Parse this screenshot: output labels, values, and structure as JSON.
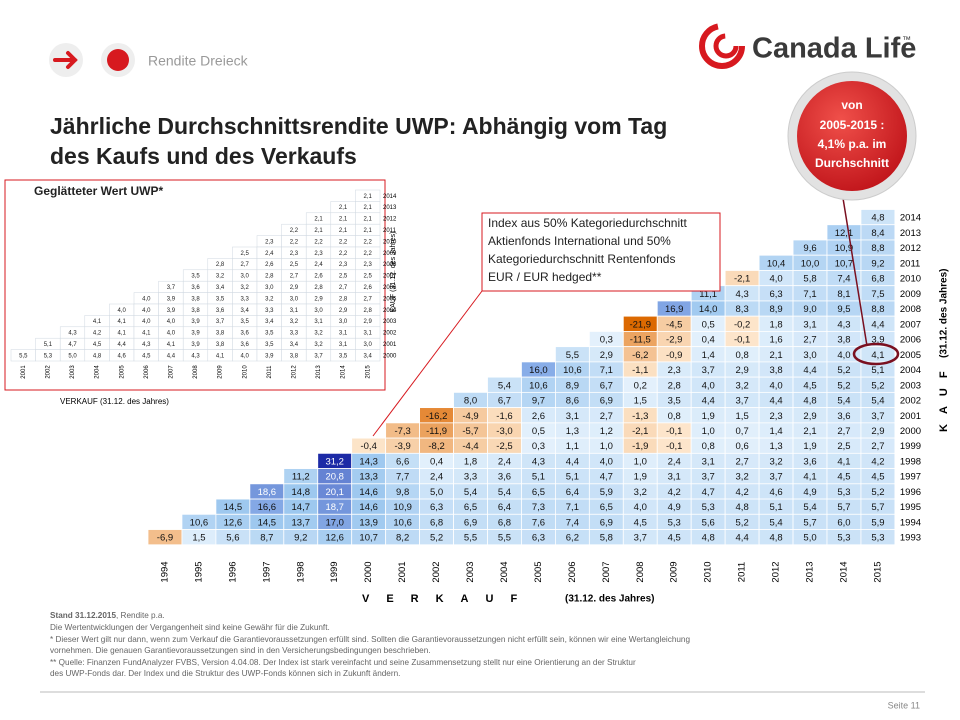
{
  "header": {
    "section": "Rendite Dreieck",
    "logo": "Canada Life",
    "logo_tm": "™"
  },
  "title_lines": [
    "Jährliche Durchschnittsrendite UWP: Abhängig vom Tag",
    "des Kaufs und des Verkaufs"
  ],
  "badge": {
    "lines": [
      "von",
      "2005-2015 :",
      "4,1% p.a. im",
      "Durchschnitt"
    ]
  },
  "index_note": {
    "lines": [
      "Index aus 50% Kategoriedurchschnitt",
      "Aktienfonds International und  50%",
      "Kategoriedurchschnitt Rentenfonds",
      "EUR / EUR hedged**"
    ]
  },
  "main_table": {
    "sale_years": [
      1994,
      1995,
      1996,
      1997,
      1998,
      1999,
      2000,
      2001,
      2002,
      2003,
      2004,
      2005,
      2006,
      2007,
      2008,
      2009,
      2010,
      2011,
      2012,
      2013,
      2014,
      2015
    ],
    "buy_years": [
      2014,
      2013,
      2012,
      2011,
      2010,
      2009,
      2008,
      2007,
      2006,
      2005,
      2004,
      2003,
      2002,
      2001,
      2000,
      1999,
      1998,
      1997,
      1996,
      1995,
      1994,
      1993
    ],
    "rows": [
      [
        "4,8"
      ],
      [
        "12,1",
        "8,4"
      ],
      [
        "9,6",
        "10,9",
        "8,8"
      ],
      [
        "10,4",
        "10,0",
        "10,7",
        "9,2"
      ],
      [
        "-2,1",
        "4,0",
        "5,8",
        "7,4",
        "6,8"
      ],
      [
        "11,1",
        "4,3",
        "6,3",
        "7,1",
        "8,1",
        "7,5"
      ],
      [
        "16,9",
        "14,0",
        "8,3",
        "8,9",
        "9,0",
        "9,5",
        "8,8"
      ],
      [
        "-21,9",
        "-4,5",
        "0,5",
        "-0,2",
        "1,8",
        "3,1",
        "4,3",
        "4,4"
      ],
      [
        "0,3",
        "-11,5",
        "-2,9",
        "0,4",
        "-0,1",
        "1,6",
        "2,7",
        "3,8",
        "3,9"
      ],
      [
        "5,5",
        "2,9",
        "-6,2",
        "-0,9",
        "1,4",
        "0,8",
        "2,1",
        "3,0",
        "4,0",
        "4,1"
      ],
      [
        "16,0",
        "10,6",
        "7,1",
        "-1,1",
        "2,3",
        "3,7",
        "2,9",
        "3,8",
        "4,4",
        "5,2",
        "5,1"
      ],
      [
        "5,4",
        "10,6",
        "8,9",
        "6,7",
        "0,2",
        "2,8",
        "4,0",
        "3,2",
        "4,0",
        "4,5",
        "5,2",
        "5,2"
      ],
      [
        "8,0",
        "6,7",
        "9,7",
        "8,6",
        "6,9",
        "1,5",
        "3,5",
        "4,4",
        "3,7",
        "4,4",
        "4,8",
        "5,4",
        "5,4"
      ],
      [
        "-16,2",
        "-4,9",
        "-1,6",
        "2,6",
        "3,1",
        "2,7",
        "-1,3",
        "0,8",
        "1,9",
        "1,5",
        "2,3",
        "2,9",
        "3,6",
        "3,7"
      ],
      [
        "-7,3",
        "-11,9",
        "-5,7",
        "-3,0",
        "0,5",
        "1,3",
        "1,2",
        "-2,1",
        "-0,1",
        "1,0",
        "0,7",
        "1,4",
        "2,1",
        "2,7",
        "2,9"
      ],
      [
        "-0,4",
        "-3,9",
        "-8,2",
        "-4,4",
        "-2,5",
        "0,3",
        "1,1",
        "1,0",
        "-1,9",
        "-0,1",
        "0,8",
        "0,6",
        "1,3",
        "1,9",
        "2,5",
        "2,7"
      ],
      [
        "31,2",
        "14,3",
        "6,6",
        "0,4",
        "1,8",
        "2,4",
        "4,3",
        "4,4",
        "4,0",
        "1,0",
        "2,4",
        "3,1",
        "2,7",
        "3,2",
        "3,6",
        "4,1",
        "4,2"
      ],
      [
        "11,2",
        "20,8",
        "13,3",
        "7,7",
        "2,4",
        "3,3",
        "3,6",
        "5,1",
        "5,1",
        "4,7",
        "1,9",
        "3,1",
        "3,7",
        "3,2",
        "3,7",
        "4,1",
        "4,5",
        "4,5"
      ],
      [
        "18,6",
        "14,8",
        "20,1",
        "14,6",
        "9,8",
        "5,0",
        "5,4",
        "5,4",
        "6,5",
        "6,4",
        "5,9",
        "3,2",
        "4,2",
        "4,7",
        "4,2",
        "4,6",
        "4,9",
        "5,3",
        "5,2"
      ],
      [
        "14,5",
        "16,6",
        "14,7",
        "18,7",
        "14,6",
        "10,9",
        "6,3",
        "6,5",
        "6,4",
        "7,3",
        "7,1",
        "6,5",
        "4,0",
        "4,9",
        "5,3",
        "4,8",
        "5,1",
        "5,4",
        "5,7",
        "5,7"
      ],
      [
        "10,6",
        "12,6",
        "14,5",
        "13,7",
        "17,0",
        "13,9",
        "10,6",
        "6,8",
        "6,9",
        "6,8",
        "7,6",
        "7,4",
        "6,9",
        "4,5",
        "5,3",
        "5,6",
        "5,2",
        "5,4",
        "5,7",
        "6,0",
        "5,9"
      ],
      [
        "-6,9",
        "1,5",
        "5,6",
        "8,7",
        "9,2",
        "12,6",
        "10,7",
        "8,2",
        "5,2",
        "5,5",
        "5,5",
        "6,3",
        "6,2",
        "5,8",
        "3,7",
        "4,5",
        "4,8",
        "4,4",
        "4,8",
        "5,0",
        "5,3",
        "5,3"
      ]
    ],
    "x_axis_word": "VERKAUF",
    "x_axis_note": "(31.12. des Jahres)",
    "y_axis_word": "KAUF",
    "y_axis_note": "(31.12. des Jahres)"
  },
  "inset": {
    "title": "Geglätteter Wert UWP*",
    "sale_years": [
      2001,
      2002,
      2003,
      2004,
      2005,
      2006,
      2007,
      2008,
      2009,
      2010,
      2011,
      2012,
      2013,
      2014,
      2015
    ],
    "buy_years": [
      2014,
      2013,
      2012,
      2011,
      2010,
      2009,
      2008,
      2007,
      2006,
      2005,
      2004,
      2003,
      2002,
      2001,
      2000
    ],
    "rows": [
      [
        "2,1"
      ],
      [
        "2,1",
        "2,1"
      ],
      [
        "2,1",
        "2,1",
        "2,1"
      ],
      [
        "2,2",
        "2,1",
        "2,1",
        "2,1"
      ],
      [
        "2,3",
        "2,2",
        "2,2",
        "2,2",
        "2,2"
      ],
      [
        "2,5",
        "2,4",
        "2,3",
        "2,3",
        "2,2",
        "2,2"
      ],
      [
        "2,8",
        "2,7",
        "2,6",
        "2,5",
        "2,4",
        "2,3",
        "2,3"
      ],
      [
        "3,5",
        "3,2",
        "3,0",
        "2,8",
        "2,7",
        "2,6",
        "2,5",
        "2,5"
      ],
      [
        "3,7",
        "3,6",
        "3,4",
        "3,2",
        "3,0",
        "2,9",
        "2,8",
        "2,7",
        "2,6"
      ],
      [
        "4,0",
        "3,9",
        "3,8",
        "3,5",
        "3,3",
        "3,2",
        "3,0",
        "2,9",
        "2,8",
        "2,7"
      ],
      [
        "4,0",
        "4,0",
        "3,9",
        "3,8",
        "3,6",
        "3,4",
        "3,3",
        "3,1",
        "3,0",
        "2,9",
        "2,8"
      ],
      [
        "4,1",
        "4,1",
        "4,0",
        "4,0",
        "3,9",
        "3,7",
        "3,5",
        "3,4",
        "3,2",
        "3,1",
        "3,0",
        "2,9"
      ],
      [
        "4,3",
        "4,2",
        "4,1",
        "4,1",
        "4,0",
        "3,9",
        "3,8",
        "3,6",
        "3,5",
        "3,3",
        "3,2",
        "3,1",
        "3,1"
      ],
      [
        "5,1",
        "4,7",
        "4,5",
        "4,4",
        "4,3",
        "4,1",
        "3,9",
        "3,8",
        "3,6",
        "3,5",
        "3,4",
        "3,2",
        "3,1",
        "3,0"
      ],
      [
        "5,5",
        "5,3",
        "5,0",
        "4,8",
        "4,6",
        "4,5",
        "4,4",
        "4,3",
        "4,1",
        "4,0",
        "3,9",
        "3,8",
        "3,7",
        "3,5",
        "3,4"
      ]
    ],
    "x_axis_label": "VERKAUF (31.12. des Jahres)",
    "y_axis_label": "KAUF (31.12. des Jahres)"
  },
  "footer": {
    "stand_bold": "Stand 31.12.2015",
    "stand_rest": ", Rendite p.a.",
    "lines": [
      "Die Wertentwicklungen der Vergangenheit sind keine Gewähr für die Zukunft.",
      "* Dieser Wert gilt nur dann, wenn zum Verkauf die Garantievoraussetzungen erfüllt sind. Sollten die Garantievoraussetzungen nicht erfüllt sein, können wir eine Wertangleichung",
      "vornehmen. Die genauen Garantievoraussetzungen sind in den Versicherungsbedingungen beschrieben.",
      "** Quelle: Finanzen FundAnalyzer FVBS, Version 4.04.08. Der Index ist stark vereinfacht und seine Zusammensetzung stellt nur eine Orientierung an der Struktur",
      "des UWP-Fonds dar. Der Index und die Struktur des UWP-Fonds können sich in Zukunft ändern."
    ]
  },
  "page": "Seite 11"
}
